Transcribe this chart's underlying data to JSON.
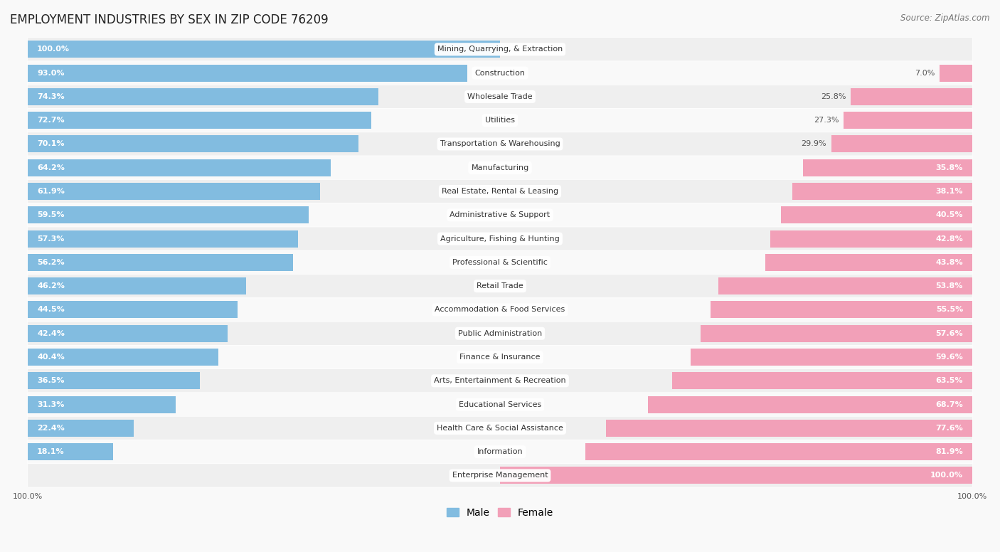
{
  "title": "EMPLOYMENT INDUSTRIES BY SEX IN ZIP CODE 76209",
  "source": "Source: ZipAtlas.com",
  "categories": [
    "Mining, Quarrying, & Extraction",
    "Construction",
    "Wholesale Trade",
    "Utilities",
    "Transportation & Warehousing",
    "Manufacturing",
    "Real Estate, Rental & Leasing",
    "Administrative & Support",
    "Agriculture, Fishing & Hunting",
    "Professional & Scientific",
    "Retail Trade",
    "Accommodation & Food Services",
    "Public Administration",
    "Finance & Insurance",
    "Arts, Entertainment & Recreation",
    "Educational Services",
    "Health Care & Social Assistance",
    "Information",
    "Enterprise Management"
  ],
  "male": [
    100.0,
    93.0,
    74.3,
    72.7,
    70.1,
    64.2,
    61.9,
    59.5,
    57.3,
    56.2,
    46.2,
    44.5,
    42.4,
    40.4,
    36.5,
    31.3,
    22.4,
    18.1,
    0.0
  ],
  "female": [
    0.0,
    7.0,
    25.8,
    27.3,
    29.9,
    35.8,
    38.1,
    40.5,
    42.8,
    43.8,
    53.8,
    55.5,
    57.6,
    59.6,
    63.5,
    68.7,
    77.6,
    81.9,
    100.0
  ],
  "male_color": "#82bce0",
  "female_color": "#f2a0b8",
  "bg_row_even": "#efefef",
  "bg_row_odd": "#f9f9f9",
  "background_color": "#f9f9f9",
  "title_fontsize": 12,
  "source_fontsize": 8.5,
  "label_fontsize": 8,
  "pct_fontsize": 8,
  "legend_fontsize": 10
}
